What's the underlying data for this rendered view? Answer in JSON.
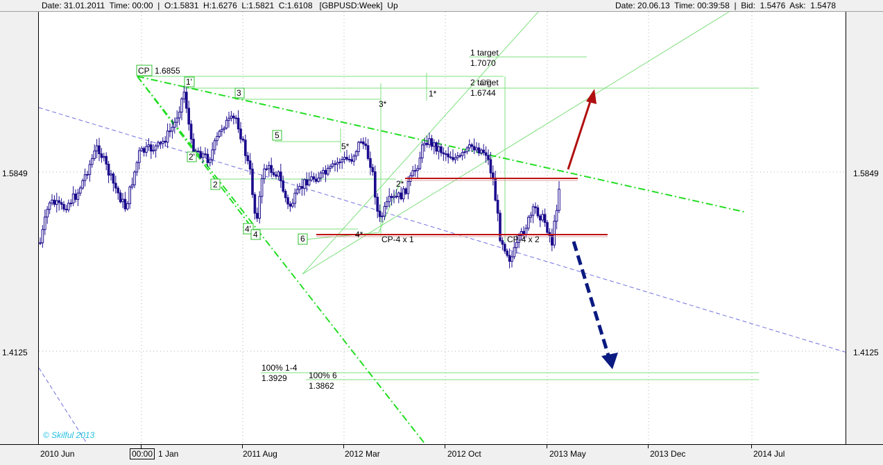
{
  "header": {
    "left_info": "Date: 31.01.2011  Time: 00:00  |  O:1.5831  H:1.6276  L:1.5821  C:1.6108   [GBPUSD:Week]  Up",
    "right_info": "Date: 20.06.13  Time: 00:39:58  |  Bid:  1.5476  Ask:  1.5478"
  },
  "price_axis": {
    "upper": "1.5849",
    "lower": "1.4125"
  },
  "time_axis": {
    "labels": [
      "2010 Jun",
      "1 Jan",
      "2011 Aug",
      "2012 Mar",
      "2012 Oct",
      "2013 May",
      "2013 Dec",
      "2014 Jul"
    ],
    "cursor_time": "00:00"
  },
  "annotations": {
    "cp": "CP",
    "cp_value": "1.6855",
    "target1": "1 target",
    "target1_value": "1.7070",
    "target2": "2 target",
    "target2_value": "1.6744",
    "cp_overlay": "CP",
    "p1_prime": "1'",
    "p1_star": "1*",
    "p2": "2",
    "p2_prime": "2'",
    "p2_star": "2*",
    "p3": "3",
    "p3_star": "3*",
    "p4": "4",
    "p4_prime": "4'",
    "p4_star": "4*",
    "p5": "5",
    "p5_star": "5*",
    "p6": "6",
    "cp4x1": "CP-4 x 1",
    "cp4x2": "CP-4 x 2",
    "pct_14": "100% 1-4",
    "pct_14_value": "1.3929",
    "pct_6": "100% 6",
    "pct_6_value": "1.3862"
  },
  "copyright": "© Skilful 2013",
  "colors": {
    "candle": "#1a0a8c",
    "green_line": "#7ee07e",
    "green_dashdot": "#22dd22",
    "blue_dashed": "#7070e0",
    "red_arrow": "#b01010",
    "navy_arrow": "#0a1a80"
  }
}
